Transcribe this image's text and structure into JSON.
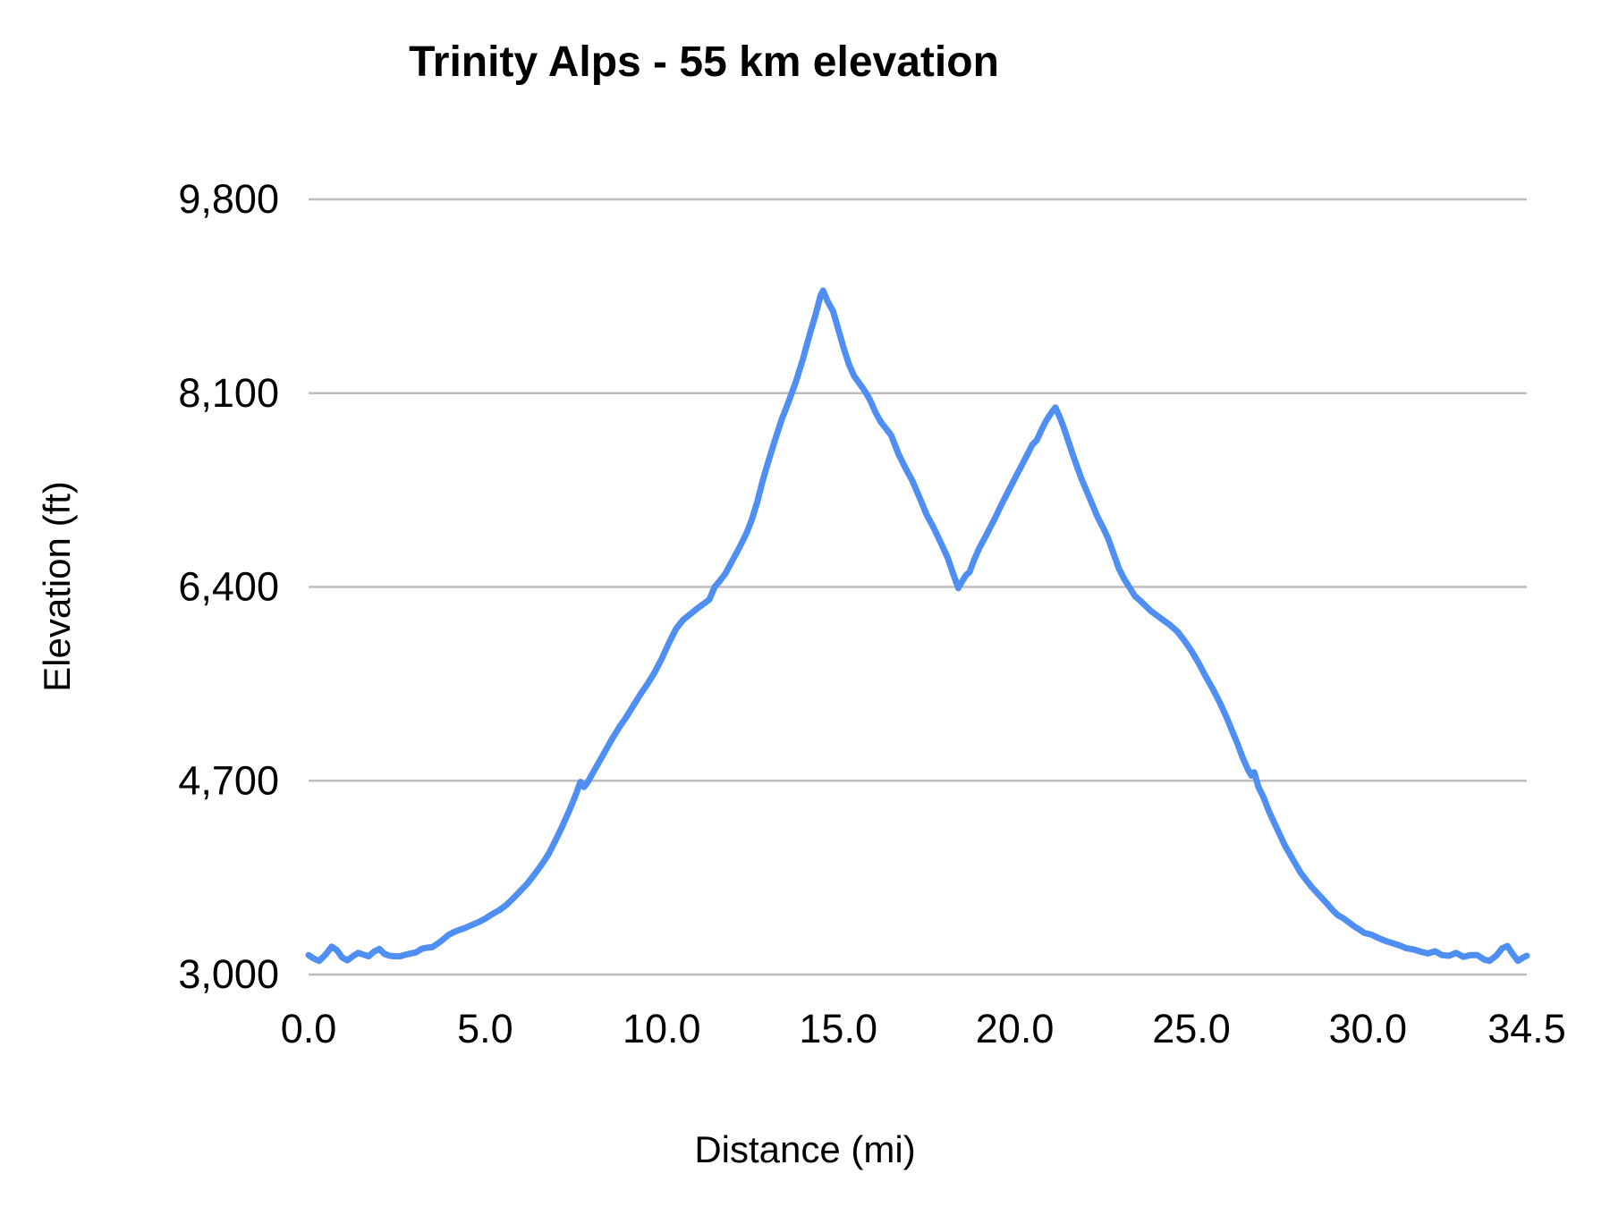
{
  "chart_data": {
    "type": "line",
    "title": "Trinity Alps - 55 km elevation",
    "xlabel": "Distance (mi)",
    "ylabel": "Elevation (ft)",
    "xlim": [
      0,
      34.5
    ],
    "ylim": [
      3000,
      9800
    ],
    "grid": "horizontal-only",
    "legend": "none",
    "line_color": "#4f8ef2",
    "gridline_color": "#bdbdbd",
    "text_color": "#000000",
    "xticks": [
      {
        "v": 0,
        "label": "0.0"
      },
      {
        "v": 5,
        "label": "5.0"
      },
      {
        "v": 10,
        "label": "10.0"
      },
      {
        "v": 15,
        "label": "15.0"
      },
      {
        "v": 20,
        "label": "20.0"
      },
      {
        "v": 25,
        "label": "25.0"
      },
      {
        "v": 30,
        "label": "30.0"
      },
      {
        "v": 34.5,
        "label": "34.5"
      }
    ],
    "yticks": [
      {
        "v": 3000,
        "label": "3,000"
      },
      {
        "v": 4700,
        "label": "4,700"
      },
      {
        "v": 6400,
        "label": "6,400"
      },
      {
        "v": 8100,
        "label": "8,100"
      },
      {
        "v": 9800,
        "label": "9,800"
      }
    ],
    "series": [
      {
        "name": "elevation",
        "points": [
          [
            0,
            3170
          ],
          [
            0.15,
            3140
          ],
          [
            0.3,
            3120
          ],
          [
            0.5,
            3180
          ],
          [
            0.65,
            3245
          ],
          [
            0.8,
            3215
          ],
          [
            0.95,
            3150
          ],
          [
            1.1,
            3125
          ],
          [
            1.25,
            3160
          ],
          [
            1.4,
            3190
          ],
          [
            1.55,
            3175
          ],
          [
            1.7,
            3160
          ],
          [
            1.85,
            3200
          ],
          [
            2,
            3225
          ],
          [
            2.15,
            3180
          ],
          [
            2.3,
            3165
          ],
          [
            2.45,
            3160
          ],
          [
            2.6,
            3160
          ],
          [
            2.75,
            3175
          ],
          [
            2.9,
            3185
          ],
          [
            3.05,
            3195
          ],
          [
            3.2,
            3225
          ],
          [
            3.35,
            3235
          ],
          [
            3.5,
            3240
          ],
          [
            3.65,
            3270
          ],
          [
            3.8,
            3305
          ],
          [
            3.95,
            3345
          ],
          [
            4.1,
            3370
          ],
          [
            4.25,
            3390
          ],
          [
            4.4,
            3405
          ],
          [
            4.55,
            3425
          ],
          [
            4.7,
            3445
          ],
          [
            4.85,
            3465
          ],
          [
            5,
            3490
          ],
          [
            5.2,
            3530
          ],
          [
            5.4,
            3565
          ],
          [
            5.6,
            3610
          ],
          [
            5.8,
            3670
          ],
          [
            6,
            3735
          ],
          [
            6.2,
            3800
          ],
          [
            6.4,
            3880
          ],
          [
            6.6,
            3965
          ],
          [
            6.8,
            4060
          ],
          [
            7,
            4180
          ],
          [
            7.2,
            4310
          ],
          [
            7.4,
            4450
          ],
          [
            7.55,
            4565
          ],
          [
            7.7,
            4690
          ],
          [
            7.8,
            4645
          ],
          [
            7.9,
            4685
          ],
          [
            8,
            4740
          ],
          [
            8.2,
            4850
          ],
          [
            8.4,
            4960
          ],
          [
            8.6,
            5070
          ],
          [
            8.8,
            5170
          ],
          [
            9,
            5260
          ],
          [
            9.2,
            5360
          ],
          [
            9.4,
            5460
          ],
          [
            9.6,
            5550
          ],
          [
            9.8,
            5650
          ],
          [
            10,
            5770
          ],
          [
            10.2,
            5905
          ],
          [
            10.4,
            6030
          ],
          [
            10.6,
            6110
          ],
          [
            10.8,
            6160
          ],
          [
            11,
            6210
          ],
          [
            11.2,
            6255
          ],
          [
            11.35,
            6290
          ],
          [
            11.5,
            6400
          ],
          [
            11.65,
            6455
          ],
          [
            11.8,
            6515
          ],
          [
            12,
            6630
          ],
          [
            12.2,
            6745
          ],
          [
            12.4,
            6870
          ],
          [
            12.55,
            6990
          ],
          [
            12.7,
            7140
          ],
          [
            12.85,
            7320
          ],
          [
            13,
            7480
          ],
          [
            13.2,
            7680
          ],
          [
            13.4,
            7870
          ],
          [
            13.6,
            8030
          ],
          [
            13.8,
            8200
          ],
          [
            14,
            8400
          ],
          [
            14.2,
            8625
          ],
          [
            14.35,
            8780
          ],
          [
            14.5,
            8955
          ],
          [
            14.57,
            9000
          ],
          [
            14.7,
            8905
          ],
          [
            14.85,
            8820
          ],
          [
            15,
            8660
          ],
          [
            15.15,
            8500
          ],
          [
            15.3,
            8355
          ],
          [
            15.45,
            8250
          ],
          [
            15.6,
            8185
          ],
          [
            15.75,
            8120
          ],
          [
            15.9,
            8040
          ],
          [
            16.05,
            7935
          ],
          [
            16.2,
            7850
          ],
          [
            16.35,
            7790
          ],
          [
            16.5,
            7730
          ],
          [
            16.7,
            7570
          ],
          [
            16.9,
            7445
          ],
          [
            17.1,
            7330
          ],
          [
            17.3,
            7185
          ],
          [
            17.5,
            7035
          ],
          [
            17.7,
            6920
          ],
          [
            17.9,
            6790
          ],
          [
            18.1,
            6655
          ],
          [
            18.25,
            6520
          ],
          [
            18.4,
            6390
          ],
          [
            18.5,
            6445
          ],
          [
            18.62,
            6505
          ],
          [
            18.72,
            6530
          ],
          [
            18.85,
            6640
          ],
          [
            19,
            6745
          ],
          [
            19.15,
            6830
          ],
          [
            19.3,
            6920
          ],
          [
            19.45,
            7010
          ],
          [
            19.6,
            7110
          ],
          [
            19.75,
            7200
          ],
          [
            19.9,
            7290
          ],
          [
            20.05,
            7380
          ],
          [
            20.2,
            7470
          ],
          [
            20.35,
            7560
          ],
          [
            20.5,
            7650
          ],
          [
            20.62,
            7685
          ],
          [
            20.75,
            7775
          ],
          [
            20.9,
            7865
          ],
          [
            21.05,
            7935
          ],
          [
            21.15,
            7975
          ],
          [
            21.3,
            7870
          ],
          [
            21.45,
            7740
          ],
          [
            21.6,
            7600
          ],
          [
            21.75,
            7465
          ],
          [
            21.9,
            7340
          ],
          [
            22.05,
            7230
          ],
          [
            22.2,
            7120
          ],
          [
            22.35,
            7010
          ],
          [
            22.5,
            6920
          ],
          [
            22.65,
            6820
          ],
          [
            22.8,
            6690
          ],
          [
            22.95,
            6560
          ],
          [
            23.1,
            6470
          ],
          [
            23.25,
            6395
          ],
          [
            23.4,
            6320
          ],
          [
            23.55,
            6280
          ],
          [
            23.7,
            6235
          ],
          [
            23.85,
            6190
          ],
          [
            24,
            6155
          ],
          [
            24.2,
            6110
          ],
          [
            24.4,
            6065
          ],
          [
            24.6,
            6010
          ],
          [
            24.8,
            5930
          ],
          [
            25,
            5840
          ],
          [
            25.2,
            5735
          ],
          [
            25.4,
            5620
          ],
          [
            25.6,
            5510
          ],
          [
            25.8,
            5390
          ],
          [
            26,
            5255
          ],
          [
            26.15,
            5140
          ],
          [
            26.3,
            5030
          ],
          [
            26.45,
            4905
          ],
          [
            26.6,
            4800
          ],
          [
            26.7,
            4745
          ],
          [
            26.78,
            4775
          ],
          [
            26.9,
            4645
          ],
          [
            27.05,
            4550
          ],
          [
            27.2,
            4430
          ],
          [
            27.35,
            4330
          ],
          [
            27.5,
            4230
          ],
          [
            27.65,
            4130
          ],
          [
            27.8,
            4050
          ],
          [
            27.95,
            3970
          ],
          [
            28.1,
            3890
          ],
          [
            28.25,
            3830
          ],
          [
            28.4,
            3770
          ],
          [
            28.55,
            3720
          ],
          [
            28.7,
            3670
          ],
          [
            28.85,
            3620
          ],
          [
            29,
            3565
          ],
          [
            29.15,
            3520
          ],
          [
            29.3,
            3495
          ],
          [
            29.45,
            3460
          ],
          [
            29.6,
            3425
          ],
          [
            29.75,
            3395
          ],
          [
            29.9,
            3365
          ],
          [
            30.1,
            3350
          ],
          [
            30.3,
            3320
          ],
          [
            30.5,
            3295
          ],
          [
            30.7,
            3275
          ],
          [
            30.9,
            3255
          ],
          [
            31.1,
            3230
          ],
          [
            31.3,
            3220
          ],
          [
            31.5,
            3200
          ],
          [
            31.7,
            3185
          ],
          [
            31.9,
            3205
          ],
          [
            32.1,
            3170
          ],
          [
            32.3,
            3165
          ],
          [
            32.5,
            3190
          ],
          [
            32.7,
            3155
          ],
          [
            32.9,
            3170
          ],
          [
            33.1,
            3170
          ],
          [
            33.3,
            3130
          ],
          [
            33.45,
            3120
          ],
          [
            33.65,
            3170
          ],
          [
            33.8,
            3230
          ],
          [
            33.95,
            3250
          ],
          [
            34.1,
            3180
          ],
          [
            34.25,
            3120
          ],
          [
            34.4,
            3150
          ],
          [
            34.5,
            3165
          ]
        ]
      }
    ]
  }
}
